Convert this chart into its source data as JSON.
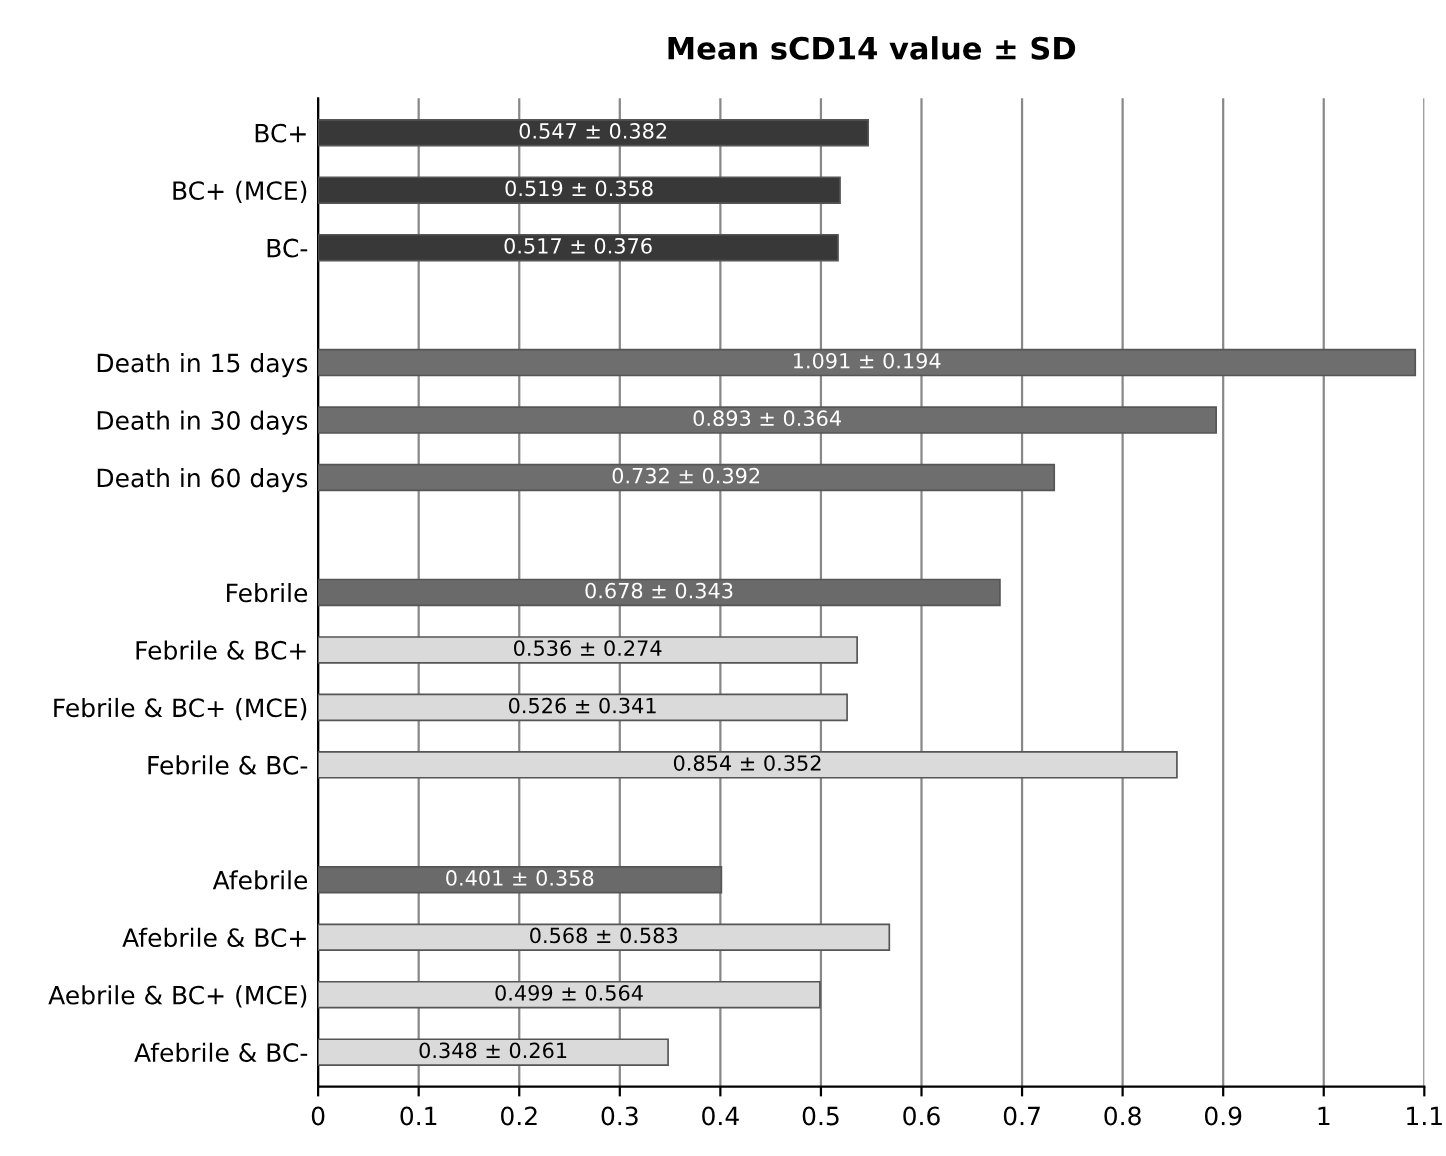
{
  "chart_data": {
    "type": "bar",
    "orientation": "horizontal",
    "title": "Mean sCD14 value ± SD",
    "categories": [
      "BC+",
      "BC+ (MCE)",
      "BC-",
      null,
      "Death in 15 days",
      "Death in 30 days",
      "Death in 60 days",
      null,
      "Febrile",
      "Febrile & BC+",
      "Febrile & BC+ (MCE)",
      "Febrile & BC-",
      null,
      "Afebrile",
      "Afebrile & BC+",
      "Aebrile & BC+ (MCE)",
      "Afebrile & BC-"
    ],
    "values": [
      0.547,
      0.519,
      0.517,
      null,
      1.091,
      0.893,
      0.732,
      null,
      0.678,
      0.536,
      0.526,
      0.854,
      null,
      0.401,
      0.568,
      0.499,
      0.348
    ],
    "value_labels": [
      "0.547 ± 0.382",
      "0.519 ± 0.358",
      "0.517 ± 0.376",
      null,
      "1.091 ± 0.194",
      "0.893 ± 0.364",
      "0.732 ± 0.392",
      null,
      "0.678 ± 0.343",
      "0.536 ± 0.274",
      "0.526 ± 0.341",
      "0.854 ± 0.352",
      null,
      "0.401 ± 0.358",
      "0.568 ± 0.583",
      "0.499 ± 0.564",
      "0.348 ± 0.261"
    ],
    "colors": [
      "#383838",
      "#383838",
      "#383838",
      "#ffffff",
      "#6e6e6e",
      "#6e6e6e",
      "#6e6e6e",
      "#ffffff",
      "#6a6a6a",
      "#dadada",
      "#dadada",
      "#dadada",
      "#ffffff",
      "#6a6a6a",
      "#dadada",
      "#dadada",
      "#dadada"
    ],
    "xlim": [
      0,
      1.1
    ],
    "xticks": [
      0,
      0.1,
      0.2,
      0.3,
      0.4,
      0.5,
      0.6,
      0.7,
      0.8,
      0.9,
      1,
      1.1
    ],
    "grid": "x"
  }
}
